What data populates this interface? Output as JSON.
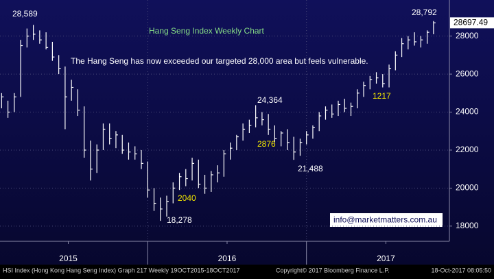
{
  "chart_data": {
    "type": "ohlc",
    "title": "Hang Seng Index Weekly Chart",
    "subtitle": "The Hang Seng has now exceeded our targeted 28,000 area but feels vulnerable.",
    "annotations": [
      "28,589",
      "18,278",
      "24,364",
      "21,488",
      "28,792",
      "2040",
      "2876",
      "1217"
    ],
    "contact": "info@marketmatters.com.au",
    "footer": [
      "HSI Index (Hong Kong Hang Seng Index) Graph 217  Weekly 19OCT2015-18OCT2017",
      "Copyright© 2017 Bloomberg Finance L.P.",
      "18-Oct-2017 08:05:50"
    ],
    "color": "#ffffff",
    "grid": true,
    "xlim": [
      2015.07,
      2017.9
    ],
    "xticks": [
      {
        "value": 2015.5,
        "label": "2015"
      },
      {
        "value": 2016.5,
        "label": "2016"
      },
      {
        "value": 2017.5,
        "label": "2017"
      }
    ],
    "ylim": [
      17200,
      29900
    ],
    "yticks": [
      18000,
      20000,
      22000,
      24000,
      26000,
      28000
    ],
    "x": [
      2015.08,
      2015.12,
      2015.16,
      2015.2,
      2015.24,
      2015.28,
      2015.32,
      2015.36,
      2015.4,
      2015.44,
      2015.48,
      2015.52,
      2015.56,
      2015.6,
      2015.64,
      2015.68,
      2015.72,
      2015.76,
      2015.8,
      2015.84,
      2015.88,
      2015.92,
      2015.96,
      2016.0,
      2016.04,
      2016.08,
      2016.12,
      2016.16,
      2016.2,
      2016.24,
      2016.28,
      2016.32,
      2016.36,
      2016.4,
      2016.44,
      2016.48,
      2016.52,
      2016.56,
      2016.6,
      2016.64,
      2016.68,
      2016.72,
      2016.76,
      2016.8,
      2016.84,
      2016.88,
      2016.92,
      2016.96,
      2017.0,
      2017.04,
      2017.08,
      2017.12,
      2017.16,
      2017.2,
      2017.24,
      2017.28,
      2017.32,
      2017.36,
      2017.4,
      2017.44,
      2017.48,
      2017.52,
      2017.56,
      2017.6,
      2017.64,
      2017.68,
      2017.72,
      2017.76,
      2017.8
    ],
    "high": [
      25000,
      24600,
      25000,
      27800,
      28400,
      28589,
      28300,
      28200,
      27700,
      27000,
      26400,
      25700,
      25200,
      24300,
      22500,
      22300,
      23400,
      23400,
      23000,
      22800,
      22400,
      22200,
      22000,
      21400,
      20000,
      19500,
      19600,
      20300,
      20800,
      21000,
      21600,
      21500,
      20700,
      20900,
      21200,
      22000,
      22400,
      22800,
      23400,
      23600,
      24364,
      24000,
      23900,
      23300,
      23000,
      23100,
      22700,
      22600,
      23000,
      23300,
      24000,
      24300,
      24400,
      24600,
      24700,
      24500,
      25200,
      25600,
      25900,
      26100,
      26000,
      26500,
      27200,
      27900,
      28000,
      28200,
      28000,
      28300,
      28792
    ],
    "low": [
      24200,
      23700,
      24000,
      24800,
      27400,
      27800,
      27600,
      27300,
      26700,
      26000,
      23100,
      24600,
      23800,
      21600,
      20400,
      20800,
      22000,
      22300,
      22100,
      21800,
      21500,
      21500,
      21000,
      19500,
      18800,
      18278,
      18500,
      19200,
      19900,
      20100,
      20400,
      20000,
      19700,
      19800,
      20300,
      20600,
      21500,
      22000,
      22500,
      22900,
      23200,
      23300,
      22800,
      22400,
      22200,
      22000,
      21488,
      21700,
      22300,
      22600,
      23000,
      23600,
      23700,
      23800,
      24000,
      23800,
      24200,
      24800,
      25200,
      25500,
      25300,
      25300,
      26200,
      26900,
      27300,
      27500,
      27400,
      27600,
      28100
    ],
    "close": [
      24800,
      24000,
      24800,
      27500,
      28000,
      28100,
      27800,
      27400,
      26900,
      26300,
      24800,
      25300,
      24100,
      22000,
      21000,
      22000,
      23100,
      22600,
      22800,
      22000,
      21900,
      21800,
      21300,
      19900,
      19200,
      18900,
      19300,
      20000,
      20600,
      20500,
      21300,
      20200,
      20000,
      20700,
      20800,
      21800,
      22100,
      22700,
      23100,
      23300,
      23700,
      23600,
      23100,
      22600,
      22900,
      22400,
      21900,
      22400,
      22800,
      23200,
      23800,
      24100,
      23900,
      24400,
      24200,
      24300,
      25000,
      25400,
      25700,
      25800,
      25500,
      26300,
      27000,
      27600,
      27800,
      27700,
      27800,
      28200,
      28697.49
    ]
  }
}
